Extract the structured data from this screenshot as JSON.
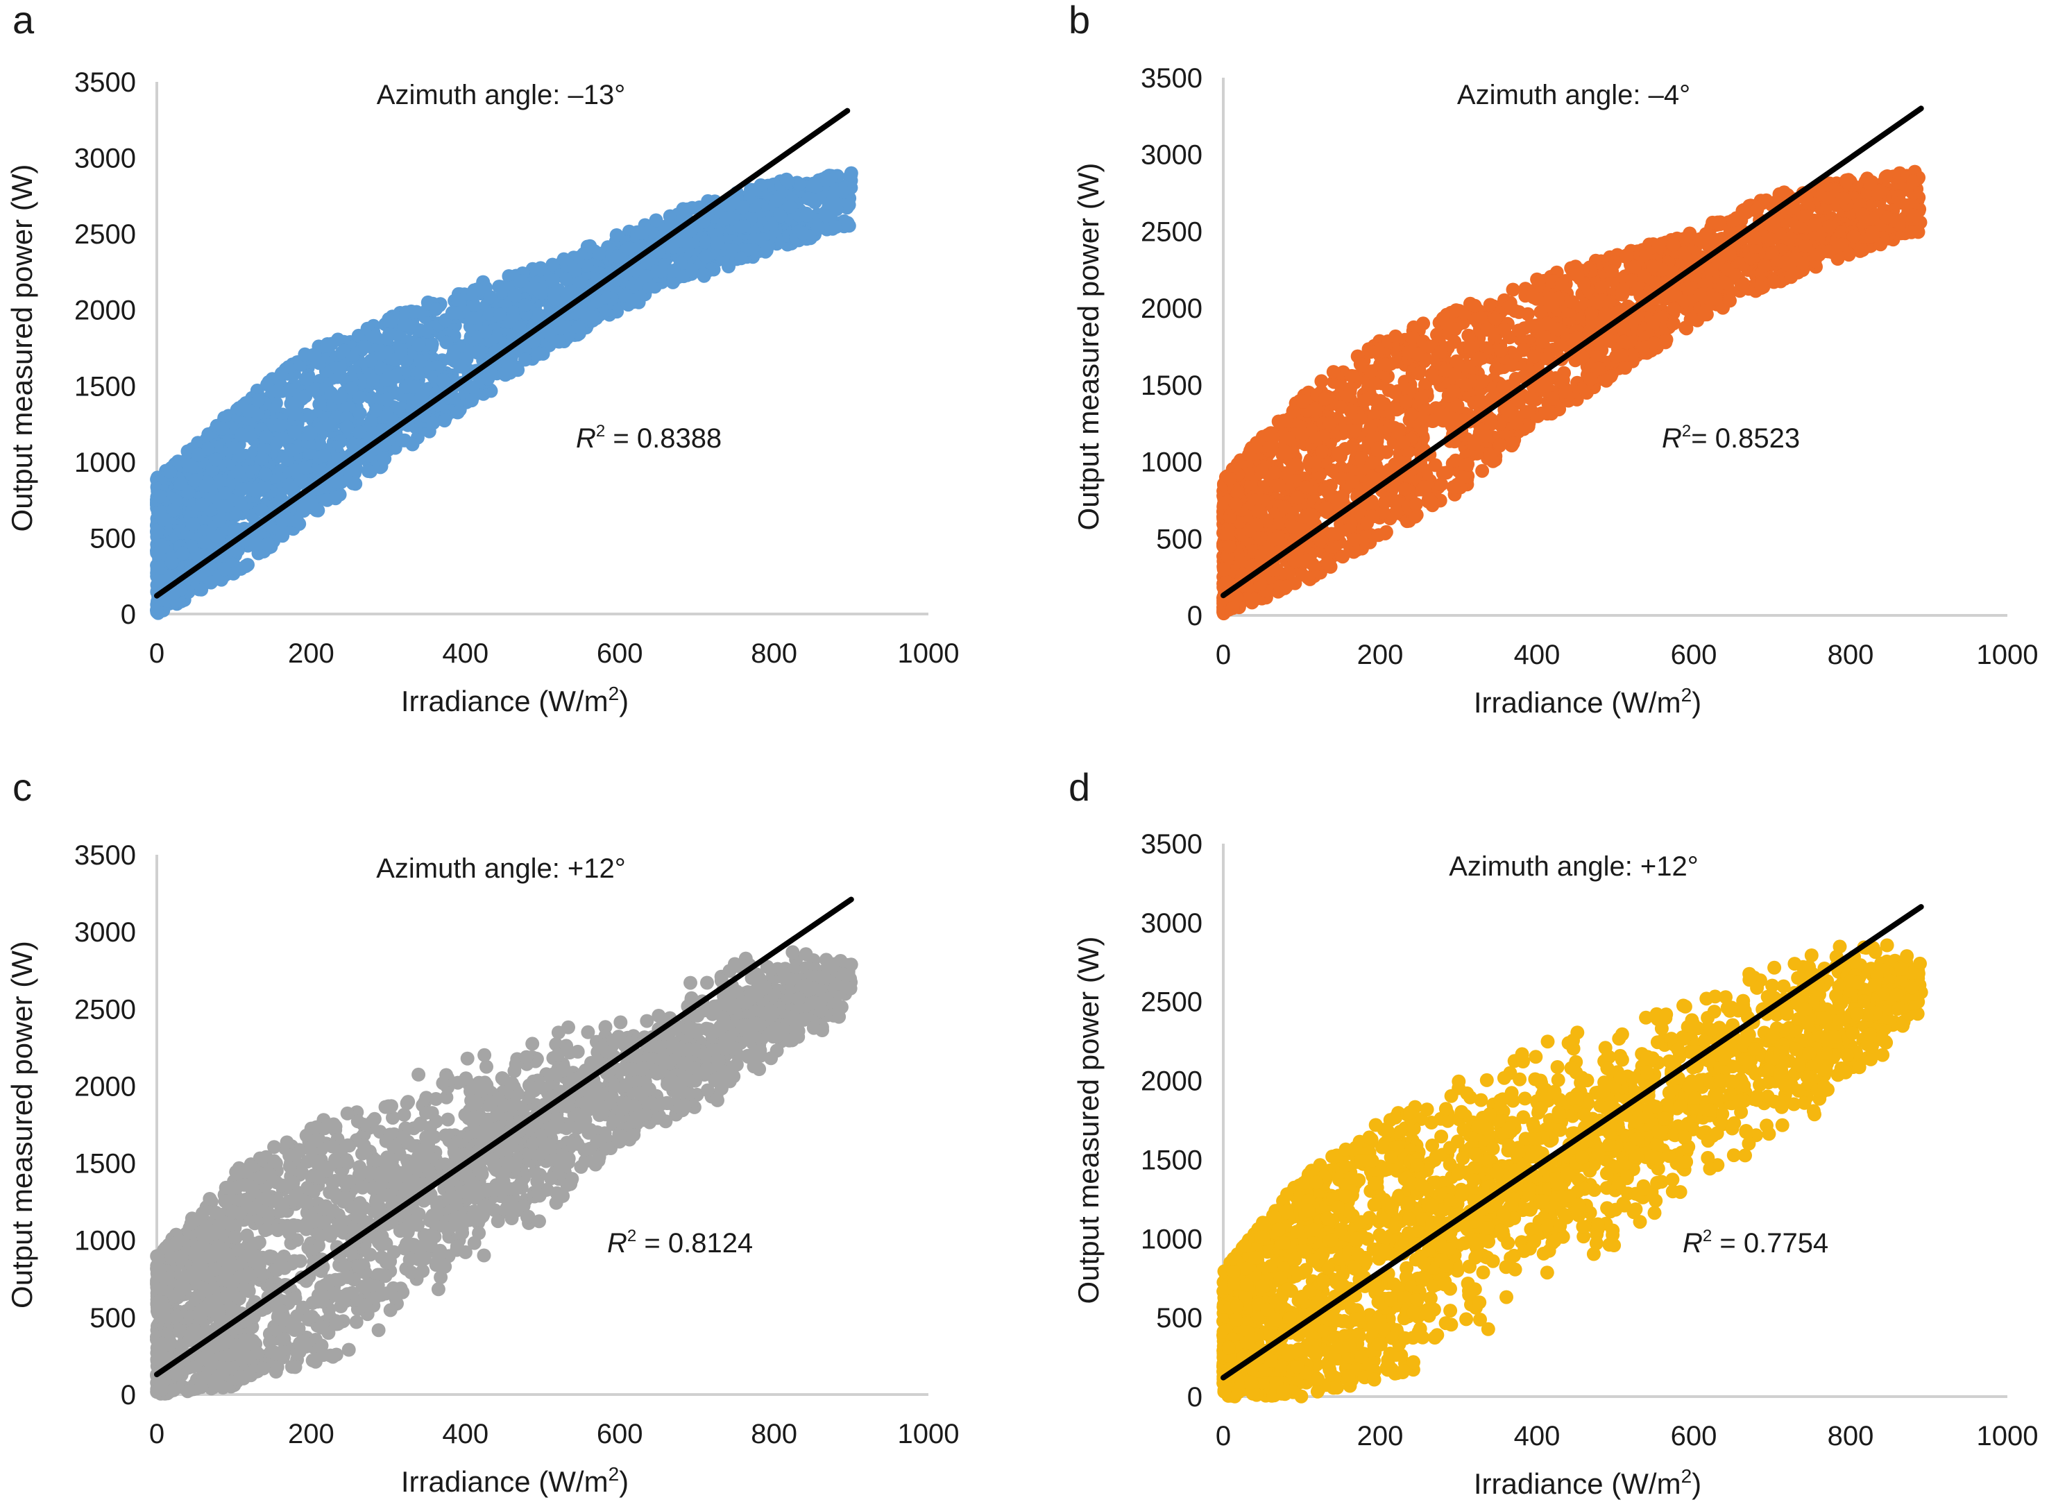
{
  "figure": {
    "panels": [
      "a",
      "b",
      "c",
      "d"
    ]
  },
  "chart_data": [
    {
      "panel_label": "a",
      "type": "scatter",
      "title": "Azimuth angle: –13°",
      "xlabel": "Irradiance (W/m²)",
      "xlabel_base": "Irradiance (W/m",
      "xlabel_sup": "2",
      "xlabel_close": ")",
      "ylabel": "Output measured power (W)",
      "xlim": [
        0,
        1000
      ],
      "ylim": [
        0,
        3500
      ],
      "xticks": [
        "0",
        "200",
        "400",
        "600",
        "800",
        "1000"
      ],
      "yticks": [
        "0",
        "500",
        "1000",
        "1500",
        "2000",
        "2500",
        "3000",
        "3500"
      ],
      "grid": false,
      "point_color": "#5b9bd5",
      "trendline": {
        "x": [
          0,
          895
        ],
        "y": [
          120,
          3310
        ],
        "color": "#000000"
      },
      "r_squared_label": "R",
      "r_squared_sup": "2",
      "r_squared_value": " = 0.8388",
      "r_squared": 0.8388,
      "data_envelope": {
        "x_range": [
          0,
          900
        ],
        "upper_bound": [
          [
            0,
            900
          ],
          [
            100,
            1350
          ],
          [
            200,
            1750
          ],
          [
            300,
            1950
          ],
          [
            400,
            2150
          ],
          [
            500,
            2300
          ],
          [
            600,
            2500
          ],
          [
            700,
            2700
          ],
          [
            800,
            2850
          ],
          [
            900,
            2900
          ]
        ],
        "lower_bound": [
          [
            0,
            0
          ],
          [
            100,
            250
          ],
          [
            200,
            650
          ],
          [
            300,
            1000
          ],
          [
            400,
            1350
          ],
          [
            500,
            1700
          ],
          [
            600,
            2000
          ],
          [
            700,
            2200
          ],
          [
            800,
            2400
          ],
          [
            900,
            2550
          ]
        ]
      }
    },
    {
      "panel_label": "b",
      "type": "scatter",
      "title": "Azimuth angle: –4°",
      "xlabel": "Irradiance (W/m²)",
      "xlabel_base": "Irradiance (W/m",
      "xlabel_sup": "2",
      "xlabel_close": ")",
      "ylabel": "Output measured power (W)",
      "xlim": [
        0,
        1000
      ],
      "ylim": [
        0,
        3500
      ],
      "xticks": [
        "0",
        "200",
        "400",
        "600",
        "800",
        "1000"
      ],
      "yticks": [
        "0",
        "500",
        "1000",
        "1500",
        "2000",
        "2500",
        "3000",
        "3500"
      ],
      "grid": false,
      "point_color": "#ed6b26",
      "trendline": {
        "x": [
          0,
          890
        ],
        "y": [
          130,
          3300
        ],
        "color": "#000000"
      },
      "r_squared_label": "R",
      "r_squared_sup": "2",
      "r_squared_value": "= 0.8523",
      "r_squared": 0.8523,
      "data_envelope": {
        "x_range": [
          0,
          890
        ],
        "upper_bound": [
          [
            0,
            900
          ],
          [
            100,
            1450
          ],
          [
            200,
            1800
          ],
          [
            300,
            2000
          ],
          [
            400,
            2200
          ],
          [
            500,
            2350
          ],
          [
            600,
            2500
          ],
          [
            700,
            2750
          ],
          [
            800,
            2850
          ],
          [
            890,
            2900
          ]
        ],
        "lower_bound": [
          [
            0,
            0
          ],
          [
            100,
            200
          ],
          [
            200,
            500
          ],
          [
            300,
            800
          ],
          [
            400,
            1250
          ],
          [
            500,
            1550
          ],
          [
            600,
            1900
          ],
          [
            700,
            2150
          ],
          [
            800,
            2350
          ],
          [
            890,
            2500
          ]
        ]
      }
    },
    {
      "panel_label": "c",
      "type": "scatter",
      "title": "Azimuth angle: +12°",
      "xlabel": "Irradiance (W/m²)",
      "xlabel_base": "Irradiance (W/m",
      "xlabel_sup": "2",
      "xlabel_close": ")",
      "ylabel": "Output measured power (W)",
      "xlim": [
        0,
        1000
      ],
      "ylim": [
        0,
        3500
      ],
      "xticks": [
        "0",
        "200",
        "400",
        "600",
        "800",
        "1000"
      ],
      "yticks": [
        "0",
        "500",
        "1000",
        "1500",
        "2000",
        "2500",
        "3000",
        "3500"
      ],
      "grid": false,
      "point_color": "#a5a5a5",
      "trendline": {
        "x": [
          0,
          900
        ],
        "y": [
          130,
          3210
        ],
        "color": "#000000"
      },
      "r_squared_label": "R",
      "r_squared_sup": "2",
      "r_squared_value": " = 0.8124",
      "r_squared": 0.8124,
      "data_envelope": {
        "x_range": [
          0,
          900
        ],
        "upper_bound": [
          [
            0,
            900
          ],
          [
            100,
            1450
          ],
          [
            200,
            1750
          ],
          [
            300,
            2000
          ],
          [
            400,
            2250
          ],
          [
            500,
            2350
          ],
          [
            600,
            2500
          ],
          [
            700,
            2700
          ],
          [
            800,
            2950
          ],
          [
            900,
            2850
          ]
        ],
        "lower_bound": [
          [
            0,
            0
          ],
          [
            100,
            50
          ],
          [
            200,
            200
          ],
          [
            300,
            350
          ],
          [
            400,
            800
          ],
          [
            500,
            1100
          ],
          [
            600,
            1500
          ],
          [
            700,
            1800
          ],
          [
            800,
            2100
          ],
          [
            900,
            2500
          ]
        ]
      }
    },
    {
      "panel_label": "d",
      "type": "scatter",
      "title": "Azimuth angle: +12°",
      "xlabel": "Irradiance (W/m²)",
      "xlabel_base": "Irradiance (W/m",
      "xlabel_sup": "2",
      "xlabel_close": ")",
      "ylabel": "Output measured power (W)",
      "xlim": [
        0,
        1000
      ],
      "ylim": [
        0,
        3500
      ],
      "xticks": [
        "0",
        "200",
        "400",
        "600",
        "800",
        "1000"
      ],
      "yticks": [
        "0",
        "500",
        "1000",
        "1500",
        "2000",
        "2500",
        "3000",
        "3500"
      ],
      "grid": false,
      "point_color": "#f5b70f",
      "trendline": {
        "x": [
          0,
          890
        ],
        "y": [
          120,
          3100
        ],
        "color": "#000000"
      },
      "r_squared_label": "R",
      "r_squared_sup": "2",
      "r_squared_value": " = 0.7754",
      "r_squared": 0.7754,
      "data_envelope": {
        "x_range": [
          0,
          890
        ],
        "upper_bound": [
          [
            0,
            800
          ],
          [
            100,
            1400
          ],
          [
            200,
            1750
          ],
          [
            300,
            2050
          ],
          [
            400,
            2250
          ],
          [
            500,
            2400
          ],
          [
            600,
            2600
          ],
          [
            700,
            2750
          ],
          [
            800,
            2950
          ],
          [
            890,
            2800
          ]
        ],
        "lower_bound": [
          [
            0,
            0
          ],
          [
            100,
            0
          ],
          [
            200,
            100
          ],
          [
            300,
            200
          ],
          [
            400,
            700
          ],
          [
            500,
            900
          ],
          [
            600,
            1300
          ],
          [
            700,
            1600
          ],
          [
            800,
            1900
          ],
          [
            890,
            2400
          ]
        ]
      }
    }
  ]
}
